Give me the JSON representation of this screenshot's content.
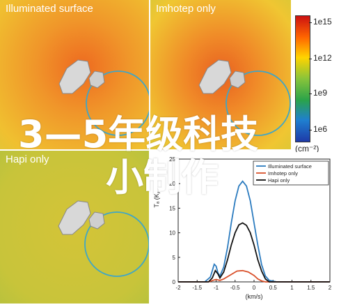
{
  "panels": [
    {
      "title": "Illuminated surface"
    },
    {
      "title": "Imhotep only"
    },
    {
      "title": "Hapi only"
    }
  ],
  "colorbar": {
    "ticks": [
      "1e15",
      "1e12",
      "1e9",
      "1e6"
    ],
    "unit": "(cm⁻²)",
    "colors": [
      "#cc1111",
      "#ff6600",
      "#ffd400",
      "#88c43a",
      "#2aa34a",
      "#1f7fd0",
      "#1e3aa8"
    ]
  },
  "overlay": {
    "line1": "3—5年级科技",
    "line2": "小制作"
  },
  "chart_data": {
    "type": "line",
    "xlabel": "(km/s)",
    "ylabel": "Tₐ (K)",
    "xlim": [
      -2,
      2
    ],
    "ylim": [
      0,
      25
    ],
    "xticks": [
      "-2",
      "-1.5",
      "-1",
      "-0.5",
      "0",
      "0.5",
      "1",
      "1.5",
      "2"
    ],
    "yticks": [
      "0",
      "5",
      "10",
      "15",
      "20",
      "25"
    ],
    "legend_position": "top-right",
    "series": [
      {
        "name": "Illuminated surface",
        "color": "#2b7bbf",
        "x": [
          -2,
          -1.3,
          -1.15,
          -1.05,
          -1.0,
          -0.95,
          -0.9,
          -0.8,
          -0.7,
          -0.6,
          -0.5,
          -0.4,
          -0.3,
          -0.2,
          -0.1,
          0.0,
          0.1,
          0.2,
          0.3,
          0.4,
          0.6,
          1.0,
          2.0
        ],
        "y": [
          0,
          0,
          1.0,
          3.6,
          3.2,
          1.8,
          1.2,
          3,
          7,
          12,
          16.5,
          19.5,
          20.5,
          19.5,
          16.5,
          12,
          7.5,
          3.5,
          1.2,
          0.3,
          0,
          0,
          0
        ]
      },
      {
        "name": "Imhotep only",
        "color": "#d9502a",
        "x": [
          -2,
          -1.2,
          -1.05,
          -1.0,
          -0.9,
          -0.8,
          -0.6,
          -0.45,
          -0.3,
          -0.15,
          0.0,
          0.1,
          0.2,
          0.3,
          2.0
        ],
        "y": [
          0,
          0,
          0.4,
          0.5,
          0.3,
          0.6,
          1.5,
          2.2,
          2.3,
          2.0,
          1.3,
          0.6,
          0.2,
          0,
          0
        ]
      },
      {
        "name": "Hapi only",
        "color": "#111111",
        "x": [
          -2,
          -1.2,
          -1.1,
          -1.02,
          -0.95,
          -0.9,
          -0.8,
          -0.7,
          -0.6,
          -0.5,
          -0.4,
          -0.3,
          -0.2,
          -0.1,
          0.0,
          0.1,
          0.2,
          0.3,
          0.4,
          2.0
        ],
        "y": [
          0,
          0,
          0.8,
          2.3,
          1.6,
          0.8,
          2,
          4.5,
          7.5,
          10,
          11.6,
          12,
          11.5,
          10,
          7.5,
          4.5,
          2.2,
          0.6,
          0,
          0
        ]
      }
    ]
  }
}
